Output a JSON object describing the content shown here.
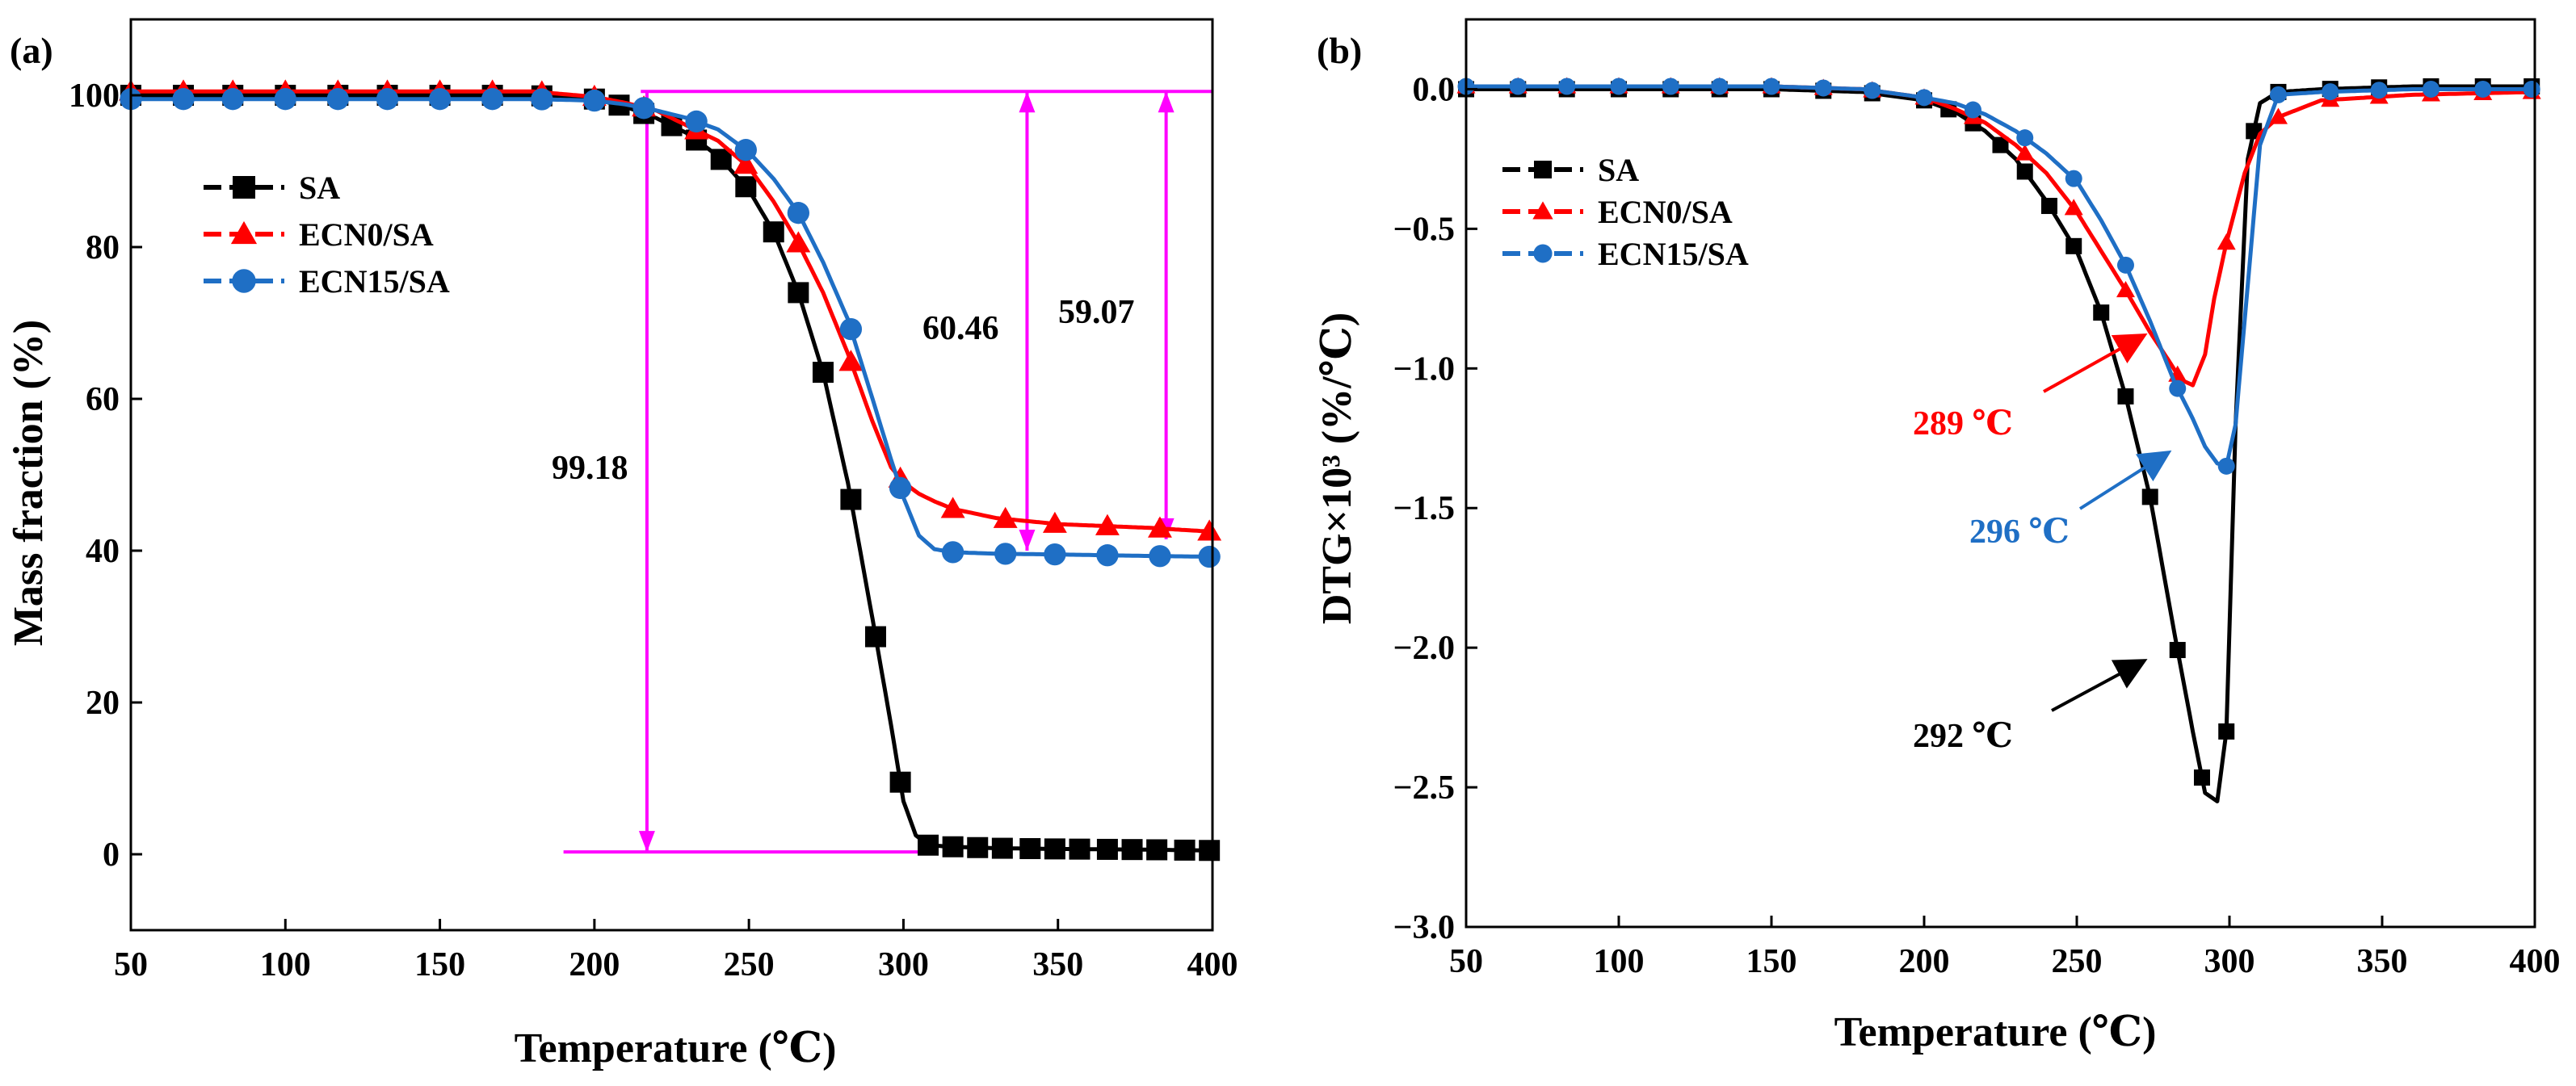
{
  "chart_data": [
    {
      "panel_label": "(a)",
      "type": "line",
      "xlabel": "Temperature (℃)",
      "ylabel": "Mass fraction (%)",
      "xlim": [
        50,
        400
      ],
      "ylim": [
        -10,
        110
      ],
      "xticks": [
        50,
        100,
        150,
        200,
        250,
        300,
        350,
        400
      ],
      "yticks": [
        0,
        20,
        40,
        60,
        80,
        100
      ],
      "grid": false,
      "legend_position": "upper-left",
      "series": [
        {
          "name": "SA",
          "color": "#000000",
          "marker": "square",
          "x": [
            50,
            100,
            150,
            180,
            200,
            210,
            220,
            230,
            240,
            250,
            258,
            266,
            274,
            282,
            290,
            296,
            300,
            304,
            308,
            315,
            330,
            350,
            380,
            400
          ],
          "y": [
            100,
            100,
            100,
            100,
            99.5,
            98.5,
            97,
            95,
            92,
            87.5,
            82,
            74,
            63.5,
            49,
            31,
            17,
            7,
            2.5,
            1.2,
            1,
            0.8,
            0.7,
            0.6,
            0.5
          ]
        },
        {
          "name": "ECN0/SA",
          "color": "#ff0000",
          "marker": "triangle",
          "x": [
            50,
            100,
            150,
            180,
            200,
            210,
            220,
            230,
            240,
            250,
            258,
            266,
            274,
            282,
            290,
            296,
            300,
            305,
            310,
            316,
            330,
            350,
            380,
            400
          ],
          "y": [
            100.5,
            100.5,
            100.5,
            100.5,
            99.8,
            99,
            98,
            96,
            94,
            90.5,
            86,
            80.5,
            74,
            66,
            57,
            51,
            49,
            47.5,
            46.5,
            45.5,
            44.3,
            43.5,
            43,
            42.5
          ]
        },
        {
          "name": "ECN15/SA",
          "color": "#1f6fc5",
          "marker": "circle",
          "x": [
            50,
            100,
            150,
            180,
            200,
            210,
            220,
            230,
            240,
            250,
            258,
            266,
            274,
            282,
            290,
            296,
            300,
            305,
            310,
            316,
            330,
            350,
            380,
            400
          ],
          "y": [
            99.5,
            99.5,
            99.5,
            99.5,
            99.3,
            98.8,
            98,
            97,
            95.5,
            92.5,
            89,
            84.5,
            78,
            70.5,
            60,
            52,
            47,
            42,
            40.2,
            39.8,
            39.6,
            39.5,
            39.3,
            39.2
          ]
        }
      ],
      "marker_x": {
        "SA": [
          50,
          67,
          83,
          100,
          117,
          133,
          150,
          167,
          183,
          200,
          208,
          216,
          225,
          233,
          241,
          249,
          258,
          266,
          274,
          283,
          291,
          299,
          308,
          316,
          324,
          332,
          341,
          349,
          357,
          366,
          374,
          382,
          391,
          399
        ],
        "ECN0/SA": [
          50,
          67,
          83,
          100,
          117,
          133,
          150,
          167,
          183,
          200,
          216,
          233,
          249,
          266,
          283,
          299,
          316,
          333,
          349,
          366,
          383,
          399
        ],
        "ECN15/SA": [
          50,
          67,
          83,
          100,
          117,
          133,
          150,
          167,
          183,
          200,
          216,
          233,
          249,
          266,
          283,
          299,
          316,
          333,
          349,
          366,
          383,
          399
        ]
      },
      "annotations": [
        {
          "text": "99.18",
          "color": "#000000"
        },
        {
          "text": "60.46",
          "color": "#000000"
        },
        {
          "text": "59.07",
          "color": "#000000"
        }
      ],
      "guide_color": "#ff00ff"
    },
    {
      "panel_label": "(b)",
      "type": "line",
      "xlabel": "Temperature (℃)",
      "ylabel": "DTG×10³ (%/℃)",
      "xlim": [
        50,
        400
      ],
      "ylim": [
        -3.0,
        0.25
      ],
      "xticks": [
        50,
        100,
        150,
        200,
        250,
        300,
        350,
        400
      ],
      "yticks": [
        0.0,
        -0.5,
        -1.0,
        -1.5,
        -2.0,
        -2.5,
        -3.0
      ],
      "grid": false,
      "legend_position": "upper-left",
      "series": [
        {
          "name": "SA",
          "color": "#000000",
          "marker": "square",
          "x": [
            50,
            150,
            180,
            200,
            210,
            220,
            230,
            240,
            250,
            258,
            266,
            274,
            282,
            288,
            292,
            296,
            299,
            302,
            306,
            310,
            316,
            330,
            360,
            400
          ],
          "y": [
            0,
            0,
            -0.01,
            -0.04,
            -0.08,
            -0.15,
            -0.25,
            -0.4,
            -0.58,
            -0.8,
            -1.1,
            -1.46,
            -1.95,
            -2.3,
            -2.52,
            -2.55,
            -2.3,
            -1.2,
            -0.25,
            -0.05,
            -0.01,
            0,
            0.01,
            0.01
          ]
        },
        {
          "name": "ECN0/SA",
          "color": "#ff0000",
          "marker": "triangle",
          "x": [
            50,
            150,
            180,
            200,
            210,
            220,
            230,
            240,
            250,
            258,
            266,
            274,
            280,
            284,
            288,
            292,
            295,
            299,
            305,
            310,
            316,
            330,
            360,
            400
          ],
          "y": [
            0.01,
            0.01,
            0,
            -0.03,
            -0.07,
            -0.12,
            -0.2,
            -0.3,
            -0.44,
            -0.58,
            -0.72,
            -0.87,
            -0.97,
            -1.04,
            -1.06,
            -0.95,
            -0.75,
            -0.55,
            -0.3,
            -0.16,
            -0.1,
            -0.04,
            -0.02,
            -0.01
          ]
        },
        {
          "name": "ECN15/SA",
          "color": "#1f6fc5",
          "marker": "circle",
          "x": [
            50,
            150,
            180,
            200,
            210,
            220,
            230,
            240,
            250,
            258,
            266,
            274,
            282,
            288,
            292,
            296,
            299,
            302,
            306,
            310,
            316,
            330,
            360,
            400
          ],
          "y": [
            0.01,
            0.01,
            0,
            -0.03,
            -0.05,
            -0.09,
            -0.15,
            -0.23,
            -0.33,
            -0.47,
            -0.63,
            -0.83,
            -1.05,
            -1.18,
            -1.28,
            -1.34,
            -1.35,
            -1.2,
            -0.7,
            -0.2,
            -0.02,
            -0.01,
            0,
            0
          ]
        }
      ],
      "marker_x": {
        "SA": [
          50,
          67,
          83,
          100,
          117,
          133,
          150,
          167,
          183,
          200,
          208,
          216,
          225,
          233,
          241,
          249,
          258,
          266,
          274,
          283,
          291,
          299,
          308,
          316,
          333,
          349,
          366,
          383,
          399
        ],
        "ECN0/SA": [
          50,
          67,
          83,
          100,
          117,
          133,
          150,
          167,
          183,
          200,
          216,
          233,
          249,
          266,
          283,
          299,
          316,
          333,
          349,
          366,
          383,
          399
        ],
        "ECN15/SA": [
          50,
          67,
          83,
          100,
          117,
          133,
          150,
          167,
          183,
          200,
          216,
          233,
          249,
          266,
          283,
          299,
          316,
          333,
          349,
          366,
          383,
          399
        ]
      },
      "annotations": [
        {
          "text": "289 ℃",
          "color": "#ff0000"
        },
        {
          "text": "296 ℃",
          "color": "#1f6fc5"
        },
        {
          "text": "292 ℃",
          "color": "#000000"
        }
      ]
    }
  ]
}
